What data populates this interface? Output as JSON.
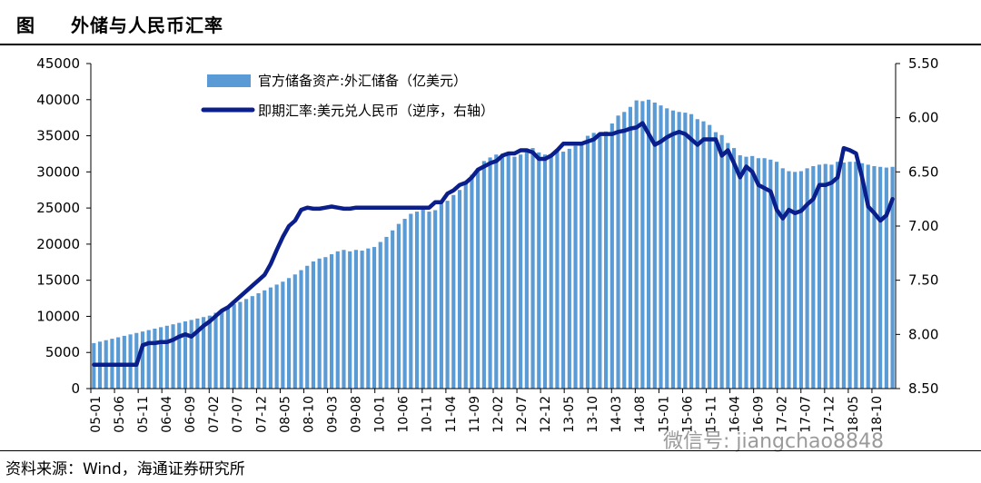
{
  "header": {
    "label": "图",
    "title": "外储与人民币汇率"
  },
  "source": "资料来源：Wind，海通证券研究所",
  "watermark": "微信号: jiangchao8848",
  "chart_data": {
    "type": "bar+line",
    "x_tick_labels": [
      "05-01",
      "05-06",
      "05-11",
      "06-04",
      "06-09",
      "07-02",
      "07-07",
      "07-12",
      "08-05",
      "08-10",
      "09-03",
      "09-08",
      "10-01",
      "10-06",
      "10-11",
      "11-04",
      "11-09",
      "12-02",
      "12-07",
      "12-12",
      "13-05",
      "13-10",
      "14-03",
      "14-08",
      "15-01",
      "15-06",
      "15-11",
      "16-04",
      "16-09",
      "17-02",
      "17-07",
      "17-12",
      "18-05",
      "18-10"
    ],
    "y_left": {
      "min": 0,
      "max": 45000,
      "ticks": [
        0,
        5000,
        10000,
        15000,
        20000,
        25000,
        30000,
        35000,
        40000,
        45000
      ]
    },
    "y_right": {
      "min": 5.5,
      "max": 8.5,
      "reversed": true,
      "ticks": [
        "5.50",
        "6.00",
        "6.50",
        "7.00",
        "7.50",
        "8.00",
        "8.50"
      ]
    },
    "series": [
      {
        "name": "官方储备资产:外汇储备（亿美元）",
        "type": "bar",
        "axis": "left",
        "color": "#5b9bd5",
        "values": [
          6300,
          6500,
          6700,
          6900,
          7100,
          7300,
          7500,
          7700,
          7900,
          8100,
          8300,
          8500,
          8700,
          8900,
          9100,
          9300,
          9500,
          9700,
          9900,
          10100,
          10500,
          10900,
          11300,
          11700,
          12000,
          12400,
          12800,
          13200,
          13600,
          14000,
          14400,
          14800,
          15300,
          15800,
          16400,
          17000,
          17600,
          18000,
          18200,
          18600,
          19000,
          19200,
          19000,
          19200,
          19100,
          19400,
          19600,
          20300,
          21000,
          21900,
          22800,
          23500,
          24200,
          24500,
          24800,
          24500,
          24700,
          25600,
          26000,
          26800,
          27500,
          28600,
          29600,
          30500,
          31500,
          32000,
          32400,
          32500,
          32400,
          32100,
          32400,
          33000,
          33300,
          32700,
          32400,
          32400,
          32900,
          32800,
          33200,
          33600,
          34100,
          35000,
          35400,
          35000,
          35600,
          36700,
          37800,
          38300,
          39000,
          39900,
          39800,
          40000,
          39600,
          39200,
          38800,
          38500,
          38300,
          38200,
          38000,
          37300,
          37000,
          36500,
          35500,
          35100,
          34000,
          33300,
          32300,
          32100,
          32200,
          31900,
          31900,
          31700,
          31400,
          30500,
          30100,
          30000,
          30100,
          30500,
          30800,
          31000,
          31100,
          31000,
          31400,
          31300,
          31400,
          31400,
          31200,
          31000,
          30800,
          30700,
          30600,
          30700
        ]
      },
      {
        "name": "即期汇率:美元兑人民币（逆序，右轴）",
        "type": "line",
        "axis": "right",
        "color": "#0a1e8c",
        "values": [
          8.28,
          8.28,
          8.28,
          8.28,
          8.28,
          8.28,
          8.28,
          8.28,
          8.1,
          8.08,
          8.08,
          8.07,
          8.07,
          8.05,
          8.02,
          8.0,
          8.02,
          7.97,
          7.92,
          7.88,
          7.83,
          7.78,
          7.75,
          7.7,
          7.65,
          7.6,
          7.55,
          7.5,
          7.45,
          7.35,
          7.22,
          7.1,
          7.0,
          6.95,
          6.85,
          6.83,
          6.84,
          6.84,
          6.83,
          6.82,
          6.83,
          6.84,
          6.84,
          6.83,
          6.83,
          6.83,
          6.83,
          6.83,
          6.83,
          6.83,
          6.83,
          6.83,
          6.83,
          6.83,
          6.83,
          6.83,
          6.78,
          6.78,
          6.7,
          6.67,
          6.62,
          6.6,
          6.55,
          6.48,
          6.45,
          6.42,
          6.4,
          6.35,
          6.33,
          6.33,
          6.3,
          6.3,
          6.32,
          6.38,
          6.38,
          6.35,
          6.3,
          6.24,
          6.24,
          6.24,
          6.24,
          6.22,
          6.2,
          6.15,
          6.15,
          6.15,
          6.13,
          6.12,
          6.1,
          6.09,
          6.05,
          6.15,
          6.25,
          6.22,
          6.18,
          6.15,
          6.13,
          6.15,
          6.2,
          6.25,
          6.2,
          6.2,
          6.2,
          6.35,
          6.3,
          6.42,
          6.55,
          6.45,
          6.5,
          6.62,
          6.65,
          6.68,
          6.85,
          6.93,
          6.85,
          6.88,
          6.86,
          6.8,
          6.75,
          6.62,
          6.62,
          6.6,
          6.55,
          6.28,
          6.3,
          6.33,
          6.55,
          6.82,
          6.88,
          6.95,
          6.9,
          6.75
        ]
      }
    ]
  }
}
